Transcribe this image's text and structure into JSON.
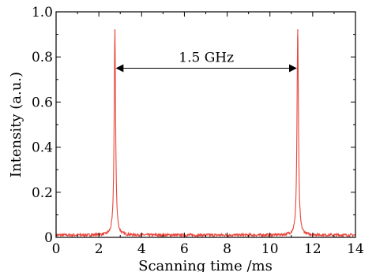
{
  "colors": {
    "trace": "#e8463b",
    "axis": "#000000",
    "background": "#ffffff"
  },
  "chart_data": {
    "type": "line",
    "title": "",
    "xlabel": "Scanning time /ms",
    "ylabel": "Intensity (a.u.)",
    "xlim": [
      0,
      14
    ],
    "ylim": [
      0,
      1.0
    ],
    "x_ticks": [
      0,
      2,
      4,
      6,
      8,
      10,
      12,
      14
    ],
    "x_tick_labels": [
      "0",
      "2",
      "4",
      "6",
      "8",
      "10",
      "12",
      "14"
    ],
    "y_ticks": [
      0,
      0.2,
      0.4,
      0.6,
      0.8,
      1.0
    ],
    "y_tick_labels": [
      "0",
      "0.2",
      "0.4",
      "0.6",
      "0.8",
      "1.0"
    ],
    "grid": false,
    "legend": "none",
    "series": [
      {
        "baseline": 0.01,
        "peaks": [
          {
            "x": 2.75,
            "y": 0.92,
            "width": 0.04
          },
          {
            "x": 11.3,
            "y": 0.92,
            "width": 0.04
          }
        ]
      }
    ],
    "annotations": [
      {
        "text": "1.5 GHz",
        "x_start": 2.75,
        "x_end": 11.3,
        "y": 0.75,
        "type": "double-arrow"
      }
    ]
  }
}
